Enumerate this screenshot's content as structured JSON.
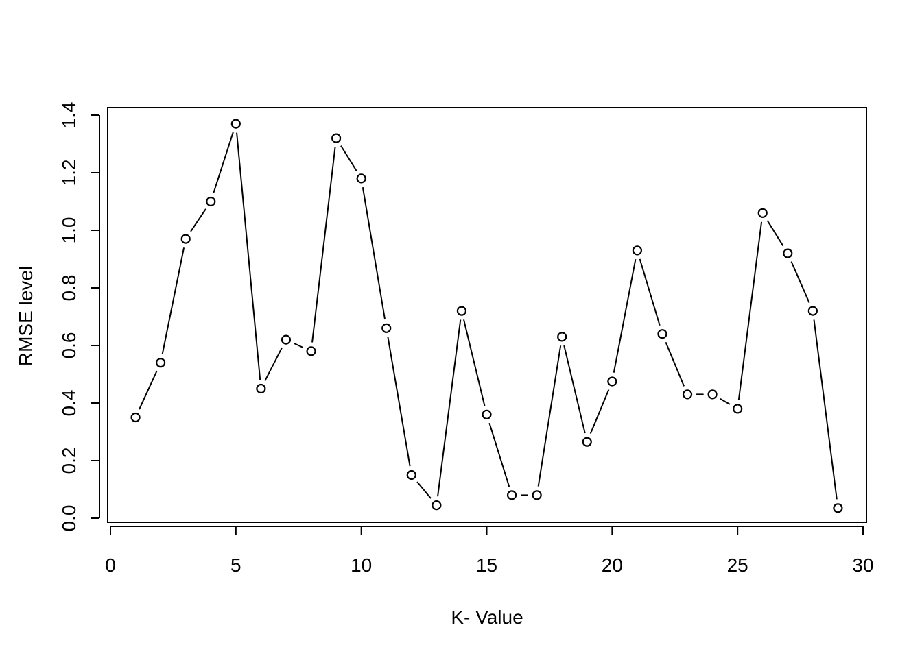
{
  "chart_data": {
    "type": "line",
    "title": "",
    "xlabel": "K- Value",
    "ylabel": "RMSE level",
    "xlim": [
      0,
      30
    ],
    "ylim": [
      0,
      1.4
    ],
    "xticks": [
      "0",
      "5",
      "10",
      "15",
      "20",
      "25",
      "30"
    ],
    "yticks": [
      "0.0",
      "0.2",
      "0.4",
      "0.6",
      "0.8",
      "1.0",
      "1.2",
      "1.4"
    ],
    "grid": false,
    "legend": "none",
    "marker": "open-circle",
    "line_color": "#000000",
    "series": [
      {
        "x": [
          1,
          2,
          3,
          4,
          5,
          6,
          7,
          8,
          9,
          10,
          11,
          12,
          13,
          14,
          15,
          16,
          17,
          18,
          19,
          20,
          21,
          22,
          23,
          24,
          25,
          26,
          27,
          28,
          29
        ],
        "values": [
          0.35,
          0.54,
          0.97,
          1.1,
          1.37,
          0.45,
          0.62,
          0.58,
          1.32,
          1.18,
          0.66,
          0.15,
          0.045,
          0.72,
          0.36,
          0.08,
          0.08,
          0.63,
          0.265,
          0.475,
          0.93,
          0.64,
          0.43,
          0.43,
          0.38,
          1.06,
          0.92,
          0.72,
          0.035
        ]
      }
    ]
  }
}
